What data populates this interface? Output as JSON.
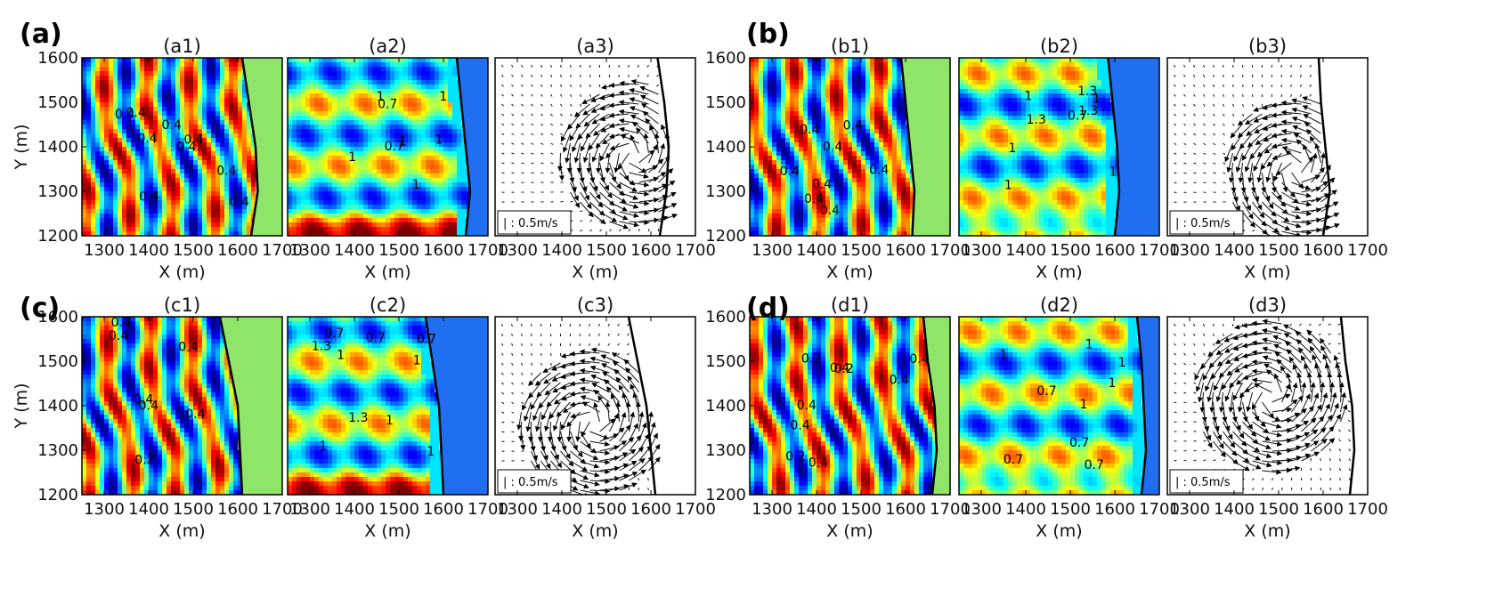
{
  "colors": {
    "land_green": "#8ee56a",
    "deep_blue": "#1f6ff0",
    "jet_colormap": [
      "#00007f",
      "#0000ff",
      "#007fff",
      "#00ffff",
      "#7fff7f",
      "#ffff00",
      "#ff7f00",
      "#ff0000",
      "#7f0000"
    ]
  },
  "scale_arrow_label": "| : 0.5m/s",
  "chart_data": [
    {
      "group": "(a)",
      "title": "(a1)",
      "type": "heatmap",
      "variant": "wave",
      "xlabel": "X (m)",
      "ylabel": "Y (m)",
      "xlim": [
        1250,
        1700
      ],
      "ylim": [
        1200,
        1600
      ],
      "xticks": [
        "1300",
        "1400",
        "1500",
        "1600",
        "1700"
      ],
      "yticks": [
        "1200",
        "1300",
        "1400",
        "1500",
        "1600"
      ],
      "shoreline_x": [
        1630,
        1645,
        1640,
        1625,
        1610
      ],
      "contour_labels": [
        "0.4",
        "0.4",
        "0.4",
        "0.4",
        "0.4",
        "0.4",
        "0.4",
        "0.4",
        "0.4"
      ],
      "land": "green"
    },
    {
      "group": "(a)",
      "title": "(a2)",
      "type": "heatmap",
      "variant": "ratio",
      "xlabel": "X (m)",
      "ylim": [
        1200,
        1600
      ],
      "xlim": [
        1250,
        1700
      ],
      "xticks": [
        "1300",
        "1400",
        "1500",
        "1600",
        "1700"
      ],
      "shoreline_x": [
        1650,
        1660,
        1650,
        1640,
        1630
      ],
      "contour_labels": [
        "0.7",
        "1",
        "1",
        "1",
        "1",
        "1",
        "0.7",
        "1"
      ],
      "land": "blue"
    },
    {
      "group": "(a)",
      "title": "(a3)",
      "type": "scatter",
      "variant": "vector",
      "xlabel": "X (m)",
      "xlim": [
        1250,
        1700
      ],
      "ylim": [
        1200,
        1600
      ],
      "xticks": [
        "1300",
        "1400",
        "1500",
        "1600",
        "1700"
      ],
      "shoreline_x": [
        1620,
        1635,
        1640,
        1630,
        1615
      ],
      "vortex": {
        "x": 1560,
        "y": 1380,
        "strength": 1.0
      }
    },
    {
      "group": "(b)",
      "title": "(b1)",
      "type": "heatmap",
      "variant": "wave",
      "xlabel": "X (m)",
      "ylim": [
        1200,
        1600
      ],
      "xlim": [
        1250,
        1700
      ],
      "xticks": [
        "1300",
        "1400",
        "1500",
        "1600",
        "1700"
      ],
      "shoreline_x": [
        1615,
        1620,
        1610,
        1600,
        1590
      ],
      "contour_labels": [
        "0.4",
        "0.4",
        "0.4",
        "0.4",
        "0.4",
        "0.4",
        "0.4",
        "0.4"
      ],
      "land": "green"
    },
    {
      "group": "(b)",
      "title": "(b2)",
      "type": "heatmap",
      "variant": "ratio",
      "xlabel": "X (m)",
      "ylim": [
        1200,
        1600
      ],
      "xlim": [
        1250,
        1700
      ],
      "xticks": [
        "1300",
        "1400",
        "1500",
        "1600",
        "1700"
      ],
      "shoreline_x": [
        1600,
        1610,
        1605,
        1595,
        1585
      ],
      "contour_labels": [
        "1",
        "1",
        "1",
        "1.3",
        "1",
        "0.7",
        "1.3",
        "1",
        "1.3"
      ],
      "land": "blue"
    },
    {
      "group": "(b)",
      "title": "(b3)",
      "type": "scatter",
      "variant": "vector",
      "xlabel": "X (m)",
      "xlim": [
        1250,
        1700
      ],
      "ylim": [
        1200,
        1600
      ],
      "xticks": [
        "1300",
        "1400",
        "1500",
        "1600",
        "1700"
      ],
      "shoreline_x": [
        1600,
        1615,
        1605,
        1595,
        1590
      ],
      "vortex": {
        "x": 1540,
        "y": 1350,
        "strength": 0.9
      }
    },
    {
      "group": "(c)",
      "title": "(c1)",
      "type": "heatmap",
      "variant": "wave",
      "xlabel": "X (m)",
      "ylabel": "Y (m)",
      "xlim": [
        1250,
        1700
      ],
      "ylim": [
        1200,
        1600
      ],
      "xticks": [
        "1300",
        "1400",
        "1500",
        "1600",
        "1700"
      ],
      "yticks": [
        "1200",
        "1300",
        "1400",
        "1500",
        "1600"
      ],
      "shoreline_x": [
        1610,
        1605,
        1600,
        1580,
        1560
      ],
      "contour_labels": [
        "0.4",
        "0.2",
        "0.4",
        "0.4",
        "0.4",
        "0.4",
        "0.4"
      ],
      "land": "green"
    },
    {
      "group": "(c)",
      "title": "(c2)",
      "type": "heatmap",
      "variant": "ratio",
      "xlabel": "X (m)",
      "ylim": [
        1200,
        1600
      ],
      "xlim": [
        1250,
        1700
      ],
      "xticks": [
        "1300",
        "1400",
        "1500",
        "1600",
        "1700"
      ],
      "shoreline_x": [
        1600,
        1595,
        1590,
        1575,
        1560
      ],
      "contour_labels": [
        "1",
        "1",
        "1",
        "0.7",
        "0.7",
        "0.7",
        "1",
        "1.3",
        "1.3",
        "1"
      ],
      "land": "blue"
    },
    {
      "group": "(c)",
      "title": "(c3)",
      "type": "scatter",
      "variant": "vector",
      "xlabel": "X (m)",
      "xlim": [
        1250,
        1700
      ],
      "ylim": [
        1200,
        1600
      ],
      "xticks": [
        "1300",
        "1400",
        "1500",
        "1600",
        "1700"
      ],
      "shoreline_x": [
        1610,
        1600,
        1590,
        1570,
        1550
      ],
      "vortex": {
        "x": 1470,
        "y": 1360,
        "strength": 1.0
      }
    },
    {
      "group": "(d)",
      "title": "(d1)",
      "type": "heatmap",
      "variant": "wave",
      "xlabel": "X (m)",
      "ylim": [
        1200,
        1600
      ],
      "xlim": [
        1250,
        1700
      ],
      "xticks": [
        "1300",
        "1400",
        "1500",
        "1600",
        "1700"
      ],
      "shoreline_x": [
        1660,
        1670,
        1665,
        1650,
        1640
      ],
      "contour_labels": [
        "0.4",
        "0.4",
        "0.4",
        "0.2",
        "0.4",
        "0.2",
        "0.4",
        "0.2",
        "0.4"
      ],
      "land": "green"
    },
    {
      "group": "(d)",
      "title": "(d2)",
      "type": "heatmap",
      "variant": "ratio",
      "xlabel": "X (m)",
      "ylim": [
        1200,
        1600
      ],
      "xlim": [
        1250,
        1700
      ],
      "xticks": [
        "1300",
        "1400",
        "1500",
        "1600",
        "1700"
      ],
      "shoreline_x": [
        1660,
        1670,
        1665,
        1660,
        1650
      ],
      "contour_labels": [
        "1",
        "1",
        "1",
        "0.7",
        "1",
        "0.7",
        "0.7",
        "1",
        "0.7"
      ],
      "land": "blue"
    },
    {
      "group": "(d)",
      "title": "(d3)",
      "type": "scatter",
      "variant": "vector",
      "xlabel": "X (m)",
      "xlim": [
        1250,
        1700
      ],
      "ylim": [
        1200,
        1600
      ],
      "xticks": [
        "1300",
        "1400",
        "1500",
        "1600",
        "1700"
      ],
      "shoreline_x": [
        1660,
        1670,
        1665,
        1650,
        1640
      ],
      "vortex": {
        "x": 1480,
        "y": 1420,
        "strength": 1.2
      }
    }
  ],
  "group_labels": [
    "(a)",
    "(b)",
    "(c)",
    "(d)"
  ]
}
